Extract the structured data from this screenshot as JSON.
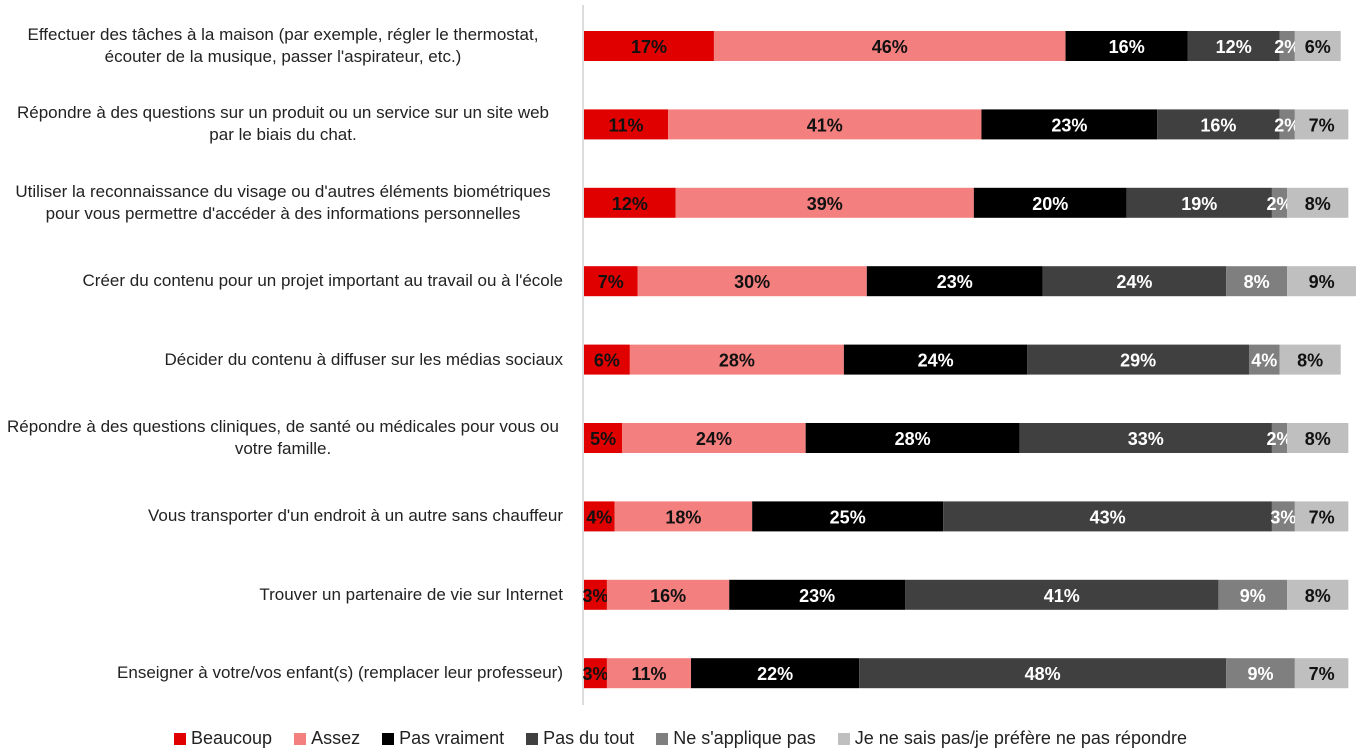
{
  "chart_data": {
    "type": "stacked-bar-horizontal",
    "categories": [
      "Effectuer des tâches à la maison (par exemple, régler le thermostat, écouter de la musique, passer l'aspirateur, etc.)",
      "Répondre à des questions sur un produit ou un service sur un site web par le biais du chat.",
      "Utiliser la reconnaissance du visage ou d'autres éléments biométriques pour vous permettre d'accéder à des informations personnelles",
      "Créer du contenu pour un projet important au travail ou à l'école",
      "Décider du contenu à diffuser sur les médias sociaux",
      "Répondre à des questions cliniques, de santé ou médicales pour vous ou votre famille.",
      "Vous transporter d'un endroit à un autre sans chauffeur",
      "Trouver un partenaire de vie sur Internet",
      "Enseigner à votre/vos enfant(s) (remplacer leur professeur)"
    ],
    "series": [
      {
        "name": "Beaucoup",
        "color": "#e00000",
        "values": [
          17,
          11,
          12,
          7,
          6,
          5,
          4,
          3,
          3
        ],
        "value_labels": [
          "17%",
          "11%",
          "12%",
          "7%",
          "6%",
          "5%",
          "4%",
          "3%",
          "3%"
        ]
      },
      {
        "name": "Assez",
        "color": "#f47f7f",
        "values": [
          46,
          41,
          39,
          30,
          28,
          24,
          18,
          16,
          11
        ],
        "value_labels": [
          "46%",
          "41%",
          "39%",
          "30%",
          "28%",
          "24%",
          "18%",
          "16%",
          "11%"
        ]
      },
      {
        "name": "Pas vraiment",
        "color": "#000000",
        "values": [
          16,
          23,
          20,
          23,
          24,
          28,
          25,
          23,
          22
        ],
        "value_labels": [
          "16%",
          "23%",
          "20%",
          "23%",
          "24%",
          "28%",
          "25%",
          "23%",
          "22%"
        ]
      },
      {
        "name": "Pas du tout",
        "color": "#404040",
        "values": [
          12,
          16,
          19,
          24,
          29,
          33,
          43,
          41,
          48
        ],
        "value_labels": [
          "12%",
          "16%",
          "19%",
          "24%",
          "29%",
          "33%",
          "43%",
          "41%",
          "48%"
        ]
      },
      {
        "name": "Ne s'applique pas",
        "color": "#7f7f7f",
        "values": [
          2,
          2,
          2,
          8,
          4,
          2,
          3,
          9,
          9
        ],
        "value_labels": [
          "2%",
          "2%",
          "2%",
          "8%",
          "4%",
          "2%",
          "3%",
          "9%",
          "9%"
        ]
      },
      {
        "name": "Je ne sais pas/je préfère ne pas répondre",
        "color": "#bfbfbf",
        "values": [
          6,
          7,
          8,
          9,
          8,
          8,
          7,
          8,
          7
        ],
        "value_labels": [
          "6%",
          "7%",
          "8%",
          "9%",
          "8%",
          "8%",
          "7%",
          "8%",
          "7%"
        ]
      }
    ]
  }
}
